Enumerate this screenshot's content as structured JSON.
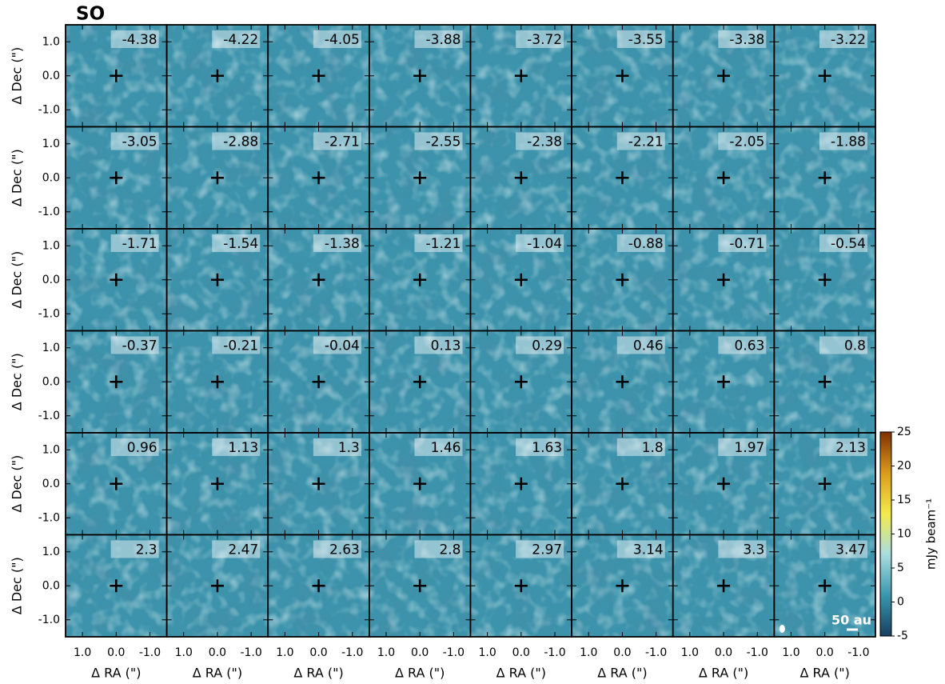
{
  "chart_data": {
    "type": "channel-map",
    "title": "SO",
    "channels": [
      -4.38,
      -4.22,
      -4.05,
      -3.88,
      -3.72,
      -3.55,
      -3.38,
      -3.22,
      -3.05,
      -2.88,
      -2.71,
      -2.55,
      -2.38,
      -2.21,
      -2.05,
      -1.88,
      -1.71,
      -1.54,
      -1.38,
      -1.21,
      -1.04,
      -0.88,
      -0.71,
      -0.54,
      -0.37,
      -0.21,
      -0.04,
      0.13,
      0.29,
      0.46,
      0.63,
      0.8,
      0.96,
      1.13,
      1.3,
      1.46,
      1.63,
      1.8,
      1.97,
      2.13,
      2.3,
      2.47,
      2.63,
      2.8,
      2.97,
      3.14,
      3.3,
      3.47
    ],
    "xlabel": "Δ RA (\")",
    "ylabel": "Δ Dec (\")",
    "xlim": [
      1.5,
      -1.5
    ],
    "ylim": [
      -1.5,
      1.5
    ],
    "xticks": [
      {
        "value": 1,
        "label": "1.0"
      },
      {
        "value": 0,
        "label": "0.0"
      },
      {
        "value": -1,
        "label": "-1.0"
      }
    ],
    "yticks": [
      {
        "value": 1,
        "label": "1.0"
      },
      {
        "value": 0,
        "label": "0.0"
      },
      {
        "value": -1,
        "label": "-1.0"
      }
    ],
    "colorbar": {
      "label": "mJy beam⁻¹",
      "lim": [
        -5,
        25
      ],
      "ticks": [
        -5,
        0,
        5,
        10,
        15,
        20,
        25
      ],
      "colors": [
        "#173f5f",
        "#3a97ad",
        "#a9dde0",
        "#f3ea4c",
        "#dc9a1c",
        "#7e3005"
      ]
    },
    "scalebar": "50 au"
  }
}
